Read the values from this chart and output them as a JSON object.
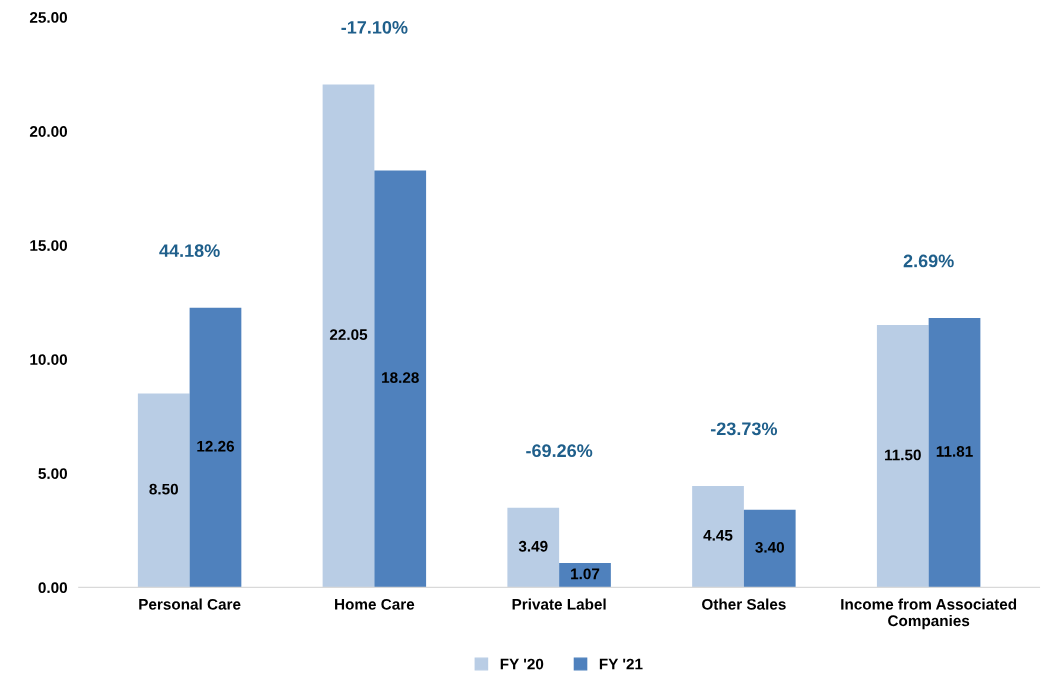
{
  "chart_data": {
    "type": "bar",
    "categories": [
      "Personal Care",
      "Home Care",
      "Private Label",
      "Other Sales",
      "Income from Associated\nCompanies"
    ],
    "series": [
      {
        "name": "FY '20",
        "color": "#b9cde5",
        "values": [
          8.5,
          22.05,
          3.49,
          4.45,
          11.5
        ],
        "value_labels": [
          "8.50",
          "22.05",
          "3.49",
          "4.45",
          "11.50"
        ]
      },
      {
        "name": "FY '21",
        "color": "#4f81bd",
        "values": [
          12.26,
          18.28,
          1.07,
          3.4,
          11.81
        ],
        "value_labels": [
          "12.26",
          "18.28",
          "1.07",
          "3.40",
          "11.81"
        ]
      }
    ],
    "ylim": [
      0,
      25
    ],
    "yticks": [
      {
        "value": 0,
        "label": "0.00"
      },
      {
        "value": 5,
        "label": "5.00"
      },
      {
        "value": 10,
        "label": "10.00"
      },
      {
        "value": 15,
        "label": "15.00"
      },
      {
        "value": 20,
        "label": "20.00"
      },
      {
        "value": 25,
        "label": "25.00"
      }
    ],
    "annotations": [
      "44.18%",
      "-17.10%",
      "-69.26%",
      "-23.73%",
      "2.69%"
    ],
    "grid": false,
    "legend": "bottom"
  }
}
